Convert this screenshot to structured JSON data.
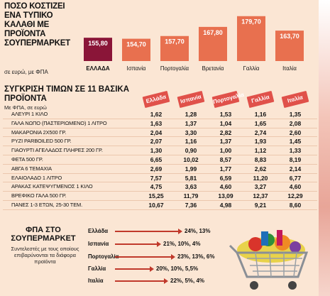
{
  "top": {
    "title": "ΠΟΣΟ ΚΟΣΤΙΖΕΙ ΕΝΑ ΤΥΠΙΚΟ ΚΑΛΑΘΙ ΜΕ ΠΡΟΪΟΝΤΑ ΣΟΥΠΕΡΜΑΡΚΕΤ",
    "subtitle": "σε ευρώ, με ΦΠΑ"
  },
  "chart_data": [
    {
      "type": "bar",
      "title": "ΠΟΣΟ ΚΟΣΤΙΖΕΙ ΕΝΑ ΤΥΠΙΚΟ ΚΑΛΑΘΙ ΜΕ ΠΡΟΪΟΝΤΑ ΣΟΥΠΕΡΜΑΡΚΕΤ",
      "subtitle": "σε ευρώ, με ΦΠΑ",
      "categories": [
        "ΕΛΛΑΔΑ",
        "Ισπανία",
        "Πορτογαλία",
        "Βρετανία",
        "Γαλλία",
        "Ιταλία"
      ],
      "values": [
        155.8,
        154.7,
        157.7,
        167.8,
        179.7,
        163.7
      ],
      "value_labels": [
        "155,80",
        "154,70",
        "157,70",
        "167,80",
        "179,70",
        "163,70"
      ],
      "colors": [
        "#8a1538",
        "#e8704f",
        "#e8704f",
        "#e8704f",
        "#e8704f",
        "#e8704f"
      ],
      "ylim": [
        130,
        185
      ],
      "grid": false,
      "legend": "none"
    },
    {
      "type": "table",
      "title": "ΣΥΓΚΡΙΣΗ ΤΙΜΩΝ ΣΕ 11 ΒΑΣΙΚΑ ΠΡΟΪΟΝΤΑ",
      "subtitle": "Με ΦΠΑ, σε ευρώ",
      "columns": [
        "Ελλάδα",
        "Ισπανία",
        "Πορτογαλία",
        "Γαλλία",
        "Ιταλία"
      ],
      "rows": [
        {
          "product": "ΑΛΕΥΡΙ 1 ΚΙΛΟ",
          "values": [
            "1,62",
            "1,28",
            "1,53",
            "1,16",
            "1,35"
          ]
        },
        {
          "product": "ΓΑΛΑ ΝΩΠΟ (ΠΑΣΤΕΡΙΩΜΕΝΟ) 1 ΛΙΤΡΟ",
          "values": [
            "1,63",
            "1,37",
            "1,04",
            "1,65",
            "2,08"
          ]
        },
        {
          "product": "ΜΑΚΑΡΟΝΙΑ 2Χ500 ΓΡ.",
          "values": [
            "2,04",
            "3,30",
            "2,82",
            "2,74",
            "2,60"
          ]
        },
        {
          "product": "ΡΥΖΙ PARBOILED 500 ΓΡ.",
          "values": [
            "2,07",
            "1,16",
            "1,37",
            "1,93",
            "1,45"
          ]
        },
        {
          "product": "ΓΙΑΟΥΡΤΙ ΑΓΕΛΑΔΟΣ ΠΛΗΡΕΣ 200 ΓΡ.",
          "values": [
            "1,30",
            "0,90",
            "1,00",
            "1,12",
            "1,33"
          ]
        },
        {
          "product": "ΦΕΤΑ 500 ΓΡ.",
          "values": [
            "6,65",
            "10,02",
            "8,57",
            "8,83",
            "8,19"
          ]
        },
        {
          "product": "ΑΒΓΑ 6 ΤΕΜΑΧΙΑ",
          "values": [
            "2,69",
            "1,99",
            "1,77",
            "2,62",
            "2,14"
          ]
        },
        {
          "product": "ΕΛΑΙΟΛΑΔΟ 1 ΛΙΤΡΟ",
          "values": [
            "7,57",
            "5,81",
            "6,59",
            "11,20",
            "6,77"
          ]
        },
        {
          "product": "ΑΡΑΚΑΣ ΚΑΤΕΨΥΓΜΕΝΟΣ 1 ΚΙΛΟ",
          "values": [
            "4,75",
            "3,63",
            "4,60",
            "3,27",
            "4,60"
          ]
        },
        {
          "product": "ΒΡΕΦΙΚΟ ΓΑΛΑ 500 ΓΡ.",
          "values": [
            "15,25",
            "11,79",
            "13,09",
            "12,37",
            "12,29"
          ]
        },
        {
          "product": "ΠΑΝΕΣ 1-3 ΕΤΩΝ, 25-30 ΤΕΜ.",
          "values": [
            "10,67",
            "7,36",
            "4,98",
            "9,21",
            "8,60"
          ]
        }
      ]
    },
    {
      "type": "bar",
      "title": "ΦΠΑ ΣΤΟ ΣΟΥΠΕΡΜΑΡΚΕΤ",
      "subtitle": "Συντελεστές με τους οποίους επιβαρύνονται τα διάφορα προϊόντα",
      "categories": [
        "Ελλάδα",
        "Ισπανία",
        "Πορτογαλία",
        "Γαλλία",
        "Ιταλία"
      ],
      "value_labels": [
        "24%, 13%",
        "21%, 10%, 4%",
        "23%, 13%, 6%",
        "20%, 10%, 5,5%",
        "22%, 5%, 4%"
      ],
      "values": [
        24,
        21,
        23,
        20,
        22
      ]
    }
  ],
  "table": {
    "title": "ΣΥΓΚΡΙΣΗ ΤΙΜΩΝ ΣΕ 11 ΒΑΣΙΚΑ ΠΡΟΪΟΝΤΑ",
    "subtitle": "Με ΦΠΑ, σε ευρώ"
  },
  "vat": {
    "title": "ΦΠΑ ΣΤΟ ΣΟΥΠΕΡΜΑΡΚΕΤ",
    "description": "Συντελεστές με τους οποίους επιβαρύνονται τα διάφορα προϊόντα"
  },
  "icons": {
    "cart": "shopping-cart-icon"
  }
}
